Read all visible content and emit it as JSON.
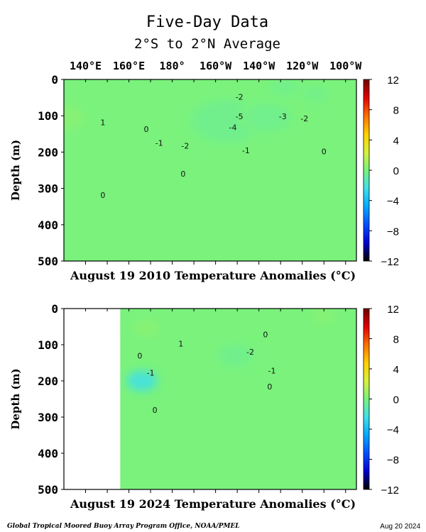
{
  "figure": {
    "title": "Five-Day Data",
    "subtitle": "2°S to 2°N Average",
    "footer_left": "Global Tropical Moored Buoy Array Program Office, NOAA/PMEL",
    "footer_right": "Aug 20 2024"
  },
  "colors": {
    "background": "#7af27c",
    "zero_contour": "#333333",
    "negative_contour": "#555555",
    "colorbar_stops": [
      "#000000",
      "#0000d0",
      "#0050ff",
      "#00aaff",
      "#40e0e8",
      "#7af27c",
      "#d8f040",
      "#ffd000",
      "#ff7000",
      "#e00000",
      "#700000"
    ]
  },
  "chart_data": [
    {
      "type": "heatmap",
      "title": "August 19 2010 Temperature Anomalies (°C)",
      "ylabel": "Depth (m)",
      "xticks": [
        "140°E",
        "160°E",
        "180°",
        "160°W",
        "140°W",
        "120°W",
        "100°W"
      ],
      "xtick_lon": [
        140,
        160,
        180,
        200,
        220,
        240,
        260
      ],
      "xlim": [
        130,
        265
      ],
      "yticks": [
        0,
        100,
        200,
        300,
        400,
        500
      ],
      "ylim": [
        0,
        500
      ],
      "colorbar": {
        "ticks": [
          12,
          8,
          4,
          0,
          -4,
          -8,
          -12
        ],
        "range": [
          -12,
          12
        ]
      },
      "features": [
        {
          "lon": 132,
          "depth": 105,
          "value": 2.5
        },
        {
          "lon": 205,
          "depth": 115,
          "value": -5.5
        },
        {
          "lon": 224,
          "depth": 105,
          "value": -3.5
        },
        {
          "lon": 232,
          "depth": 20,
          "value": -2
        },
        {
          "lon": 246,
          "depth": 40,
          "value": -1.5
        },
        {
          "lon": 250,
          "depth": 110,
          "value": -1.2
        },
        {
          "lon": 238,
          "depth": 298,
          "value": -0.5
        },
        {
          "lon": 192,
          "depth": 215,
          "value": -1
        }
      ],
      "contour_labels": [
        {
          "text": "1",
          "lon": 148,
          "depth": 118
        },
        {
          "text": "0",
          "lon": 168,
          "depth": 137
        },
        {
          "text": "-1",
          "lon": 174,
          "depth": 175
        },
        {
          "text": "-2",
          "lon": 186,
          "depth": 183
        },
        {
          "text": "-2",
          "lon": 211,
          "depth": 48
        },
        {
          "text": "-5",
          "lon": 211,
          "depth": 102
        },
        {
          "text": "-4",
          "lon": 208,
          "depth": 132
        },
        {
          "text": "-3",
          "lon": 231,
          "depth": 102
        },
        {
          "text": "-2",
          "lon": 241,
          "depth": 107
        },
        {
          "text": "-1",
          "lon": 214,
          "depth": 195
        },
        {
          "text": "0",
          "lon": 250,
          "depth": 198
        },
        {
          "text": "0",
          "lon": 185,
          "depth": 260
        },
        {
          "text": "0",
          "lon": 148,
          "depth": 318
        }
      ]
    },
    {
      "type": "heatmap",
      "title": "August 19 2024 Temperature Anomalies (°C)",
      "ylabel": "Depth (m)",
      "xticks": [],
      "xlim": [
        130,
        265
      ],
      "data_lon_range": [
        156,
        265
      ],
      "yticks": [
        0,
        100,
        200,
        300,
        400,
        500
      ],
      "ylim": [
        0,
        500
      ],
      "colorbar": {
        "ticks": [
          12,
          8,
          4,
          0,
          -4,
          -8,
          -12
        ],
        "range": [
          -12,
          12
        ]
      },
      "features": [
        {
          "lon": 168,
          "depth": 55,
          "value": 2.2
        },
        {
          "lon": 250,
          "depth": 20,
          "value": 1.8
        },
        {
          "lon": 209,
          "depth": 130,
          "value": -2.6
        },
        {
          "lon": 166,
          "depth": 200,
          "value": -1.3
        },
        {
          "lon": 205,
          "depth": 5,
          "value": -0.8
        }
      ],
      "contour_labels": [
        {
          "text": "1",
          "lon": 184,
          "depth": 97
        },
        {
          "text": "0",
          "lon": 223,
          "depth": 72
        },
        {
          "text": "0",
          "lon": 165,
          "depth": 130
        },
        {
          "text": "-2",
          "lon": 216,
          "depth": 120
        },
        {
          "text": "-1",
          "lon": 170,
          "depth": 177
        },
        {
          "text": "-1",
          "lon": 226,
          "depth": 172
        },
        {
          "text": "0",
          "lon": 225,
          "depth": 216
        },
        {
          "text": "0",
          "lon": 172,
          "depth": 280
        }
      ]
    }
  ]
}
